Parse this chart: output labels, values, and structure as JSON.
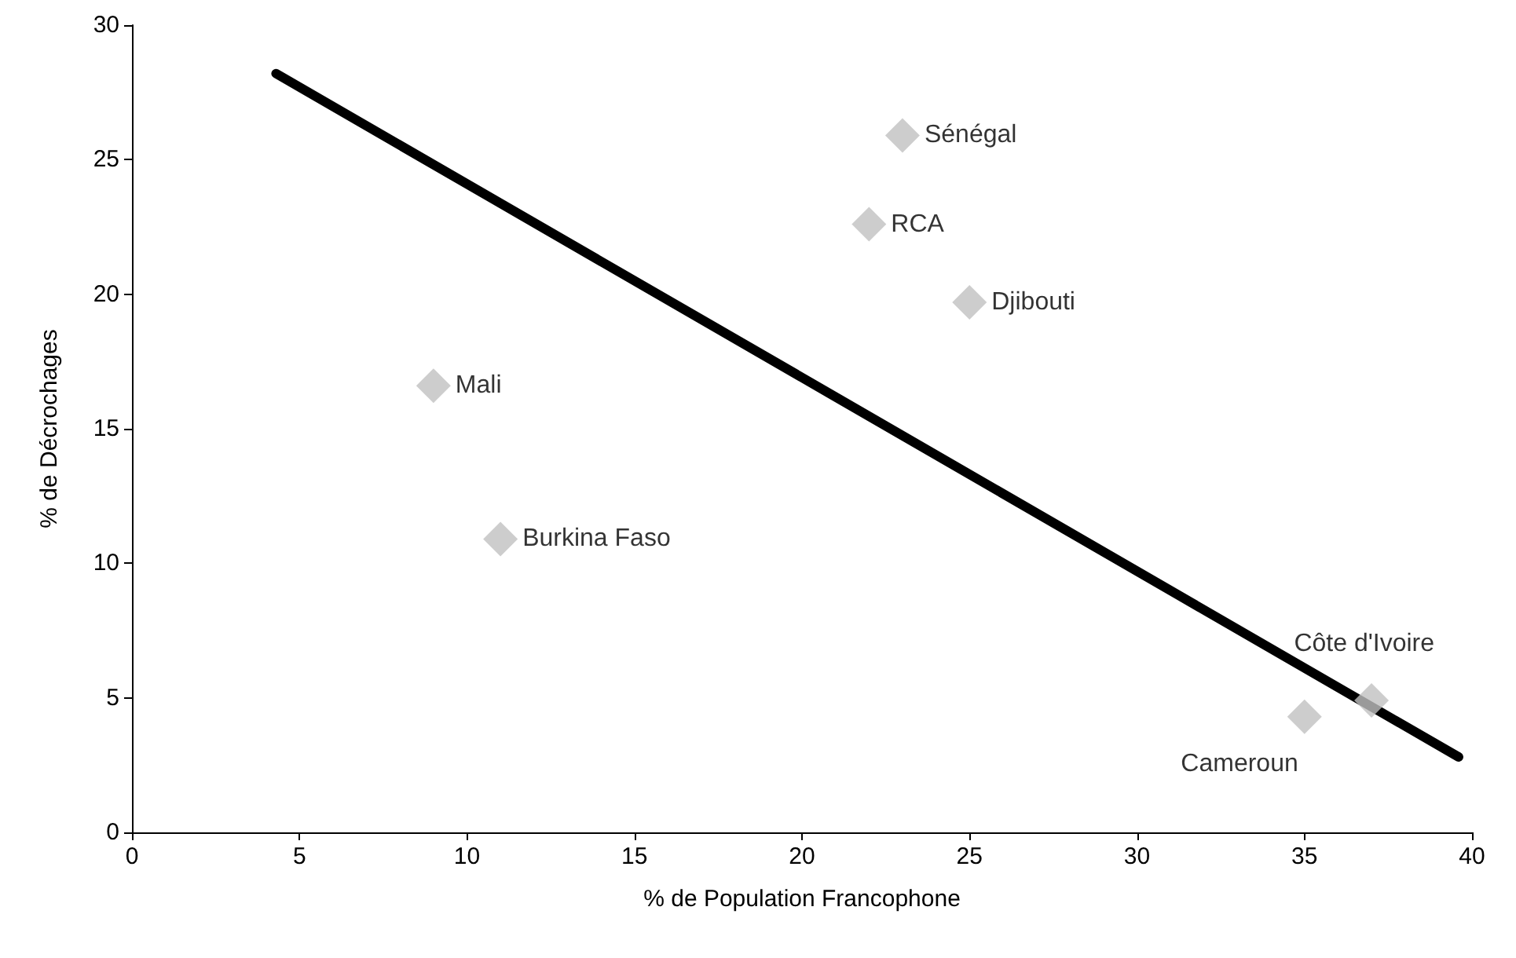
{
  "chart_data": {
    "type": "scatter",
    "xlabel": "% de Population Francophone",
    "ylabel": "% de Décrochages",
    "series": [
      {
        "color": "#c0c0c0",
        "marker": "diamond",
        "x": [
          23,
          22,
          25,
          9,
          11,
          35,
          37
        ],
        "values": [
          25.9,
          22.6,
          19.7,
          16.6,
          10.9,
          4.3,
          4.9
        ]
      },
      {
        "type": "line",
        "color": "#000000",
        "marker": "none",
        "line_style": "solid",
        "x": [
          4.3,
          39.6
        ],
        "values": [
          28.2,
          2.8
        ]
      }
    ],
    "annotations": [
      {
        "text": "Sénégal",
        "x": 23,
        "y": 25.9
      },
      {
        "text": "RCA",
        "x": 22,
        "y": 22.6
      },
      {
        "text": "Djibouti",
        "x": 25,
        "y": 19.7
      },
      {
        "text": "Mali",
        "x": 9,
        "y": 16.6
      },
      {
        "text": "Burkina Faso",
        "x": 11,
        "y": 10.9
      },
      {
        "text": "Cameroun",
        "x": 35,
        "y": 4.3
      },
      {
        "text": "Côte d'Ivoire",
        "x": 37,
        "y": 4.9
      }
    ],
    "xlim": [
      0,
      40
    ],
    "xticks": [
      0,
      5,
      10,
      15,
      20,
      25,
      30,
      35,
      40
    ],
    "ylim": [
      0,
      30
    ],
    "yticks": [
      0,
      5,
      10,
      15,
      20,
      25,
      30
    ],
    "grid": false
  }
}
